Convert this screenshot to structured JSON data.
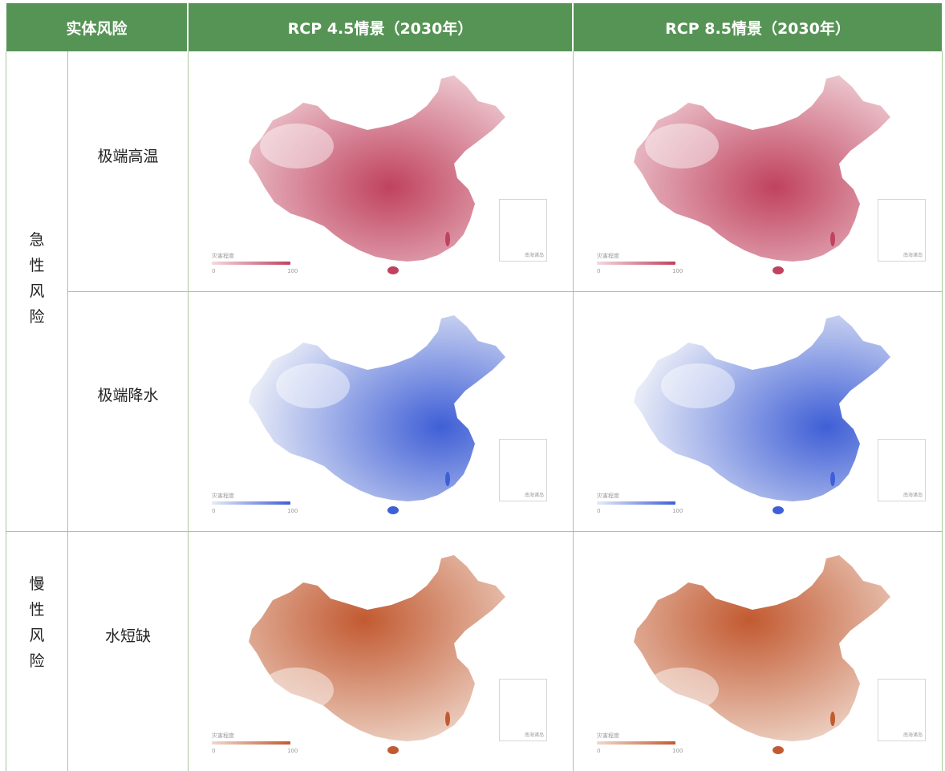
{
  "header": {
    "col1": "实体风险",
    "col2": "RCP 4.5情景（2030年）",
    "col3": "RCP 8.5情景（2030年）"
  },
  "categories": {
    "acute": [
      "急",
      "性",
      "风",
      "险"
    ],
    "chronic": [
      "慢",
      "性",
      "风",
      "险"
    ]
  },
  "risks": {
    "heat": "极端高温",
    "rain": "极端降水",
    "water": "水短缺"
  },
  "legend": {
    "title": "灾害程度",
    "min": "0",
    "max": "100",
    "inset_label": "南海诸岛"
  },
  "colors": {
    "header_bg": "#569455",
    "grid": "#a7c79a",
    "heat_high": "#c0425e",
    "heat_low": "#f3dadf",
    "rain_high": "#3f5fd6",
    "rain_low": "#e7ebf7",
    "water_high": "#c25a31",
    "water_low": "#f0d9cd"
  }
}
